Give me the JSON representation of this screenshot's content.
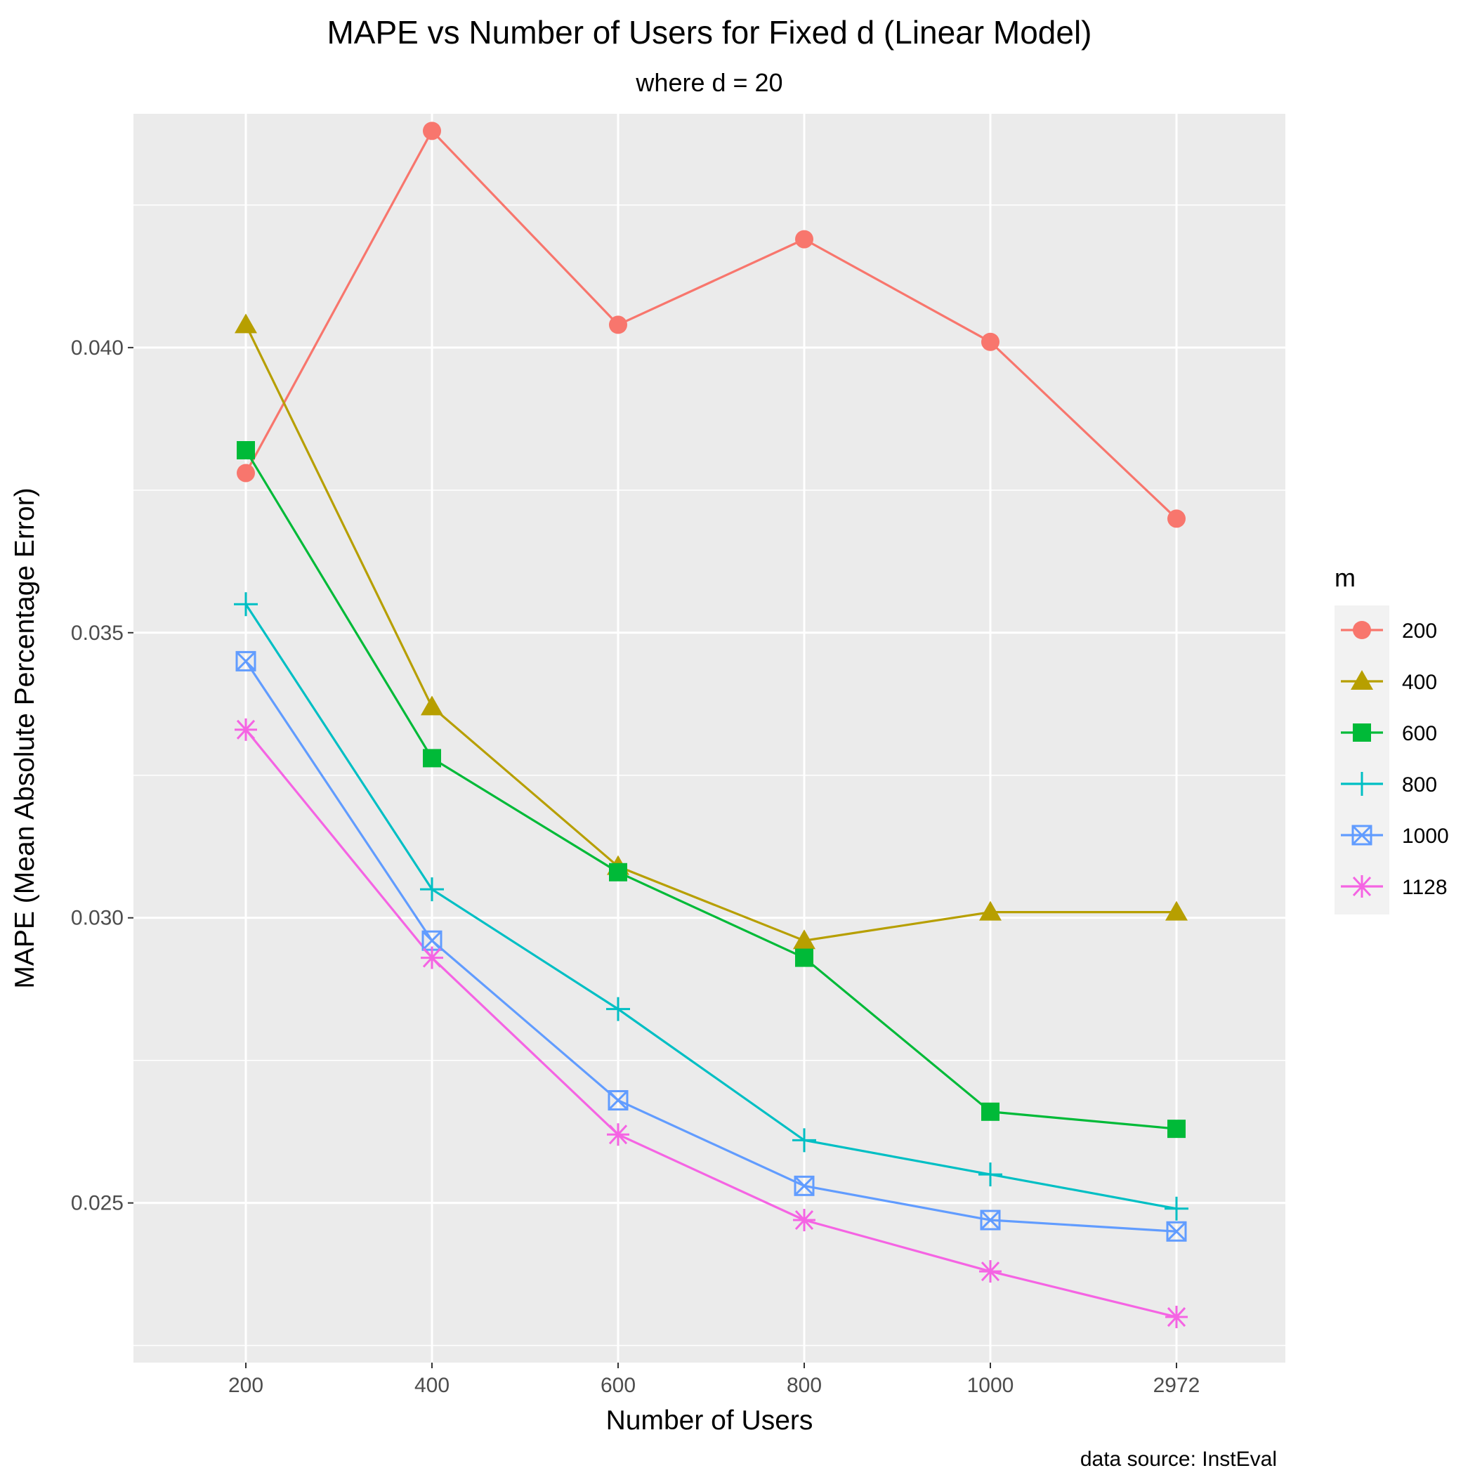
{
  "chart_data": {
    "type": "line",
    "title": "MAPE vs Number of Users for Fixed d (Linear Model)",
    "subtitle": "where d = 20",
    "xlabel": "Number of Users",
    "ylabel": "MAPE (Mean Absolute Percentage Error)",
    "caption": "data source: InstEval",
    "categories": [
      "200",
      "400",
      "600",
      "800",
      "1000",
      "2972"
    ],
    "ylim": [
      0.0222,
      0.0441
    ],
    "yticks": [
      0.025,
      0.03,
      0.035,
      0.04
    ],
    "ytick_labels": [
      "0.025",
      "0.030",
      "0.035",
      "0.040"
    ],
    "grid": true,
    "legend": {
      "title": "m",
      "position": "right"
    },
    "series": [
      {
        "name": "200",
        "color": "#F8766D",
        "shape": "circle",
        "values": [
          0.0378,
          0.0438,
          0.0404,
          0.0419,
          0.0401,
          0.037
        ]
      },
      {
        "name": "400",
        "color": "#B79F00",
        "shape": "triangle",
        "values": [
          0.0404,
          0.0337,
          0.0309,
          0.0296,
          0.0301,
          0.0301
        ]
      },
      {
        "name": "600",
        "color": "#00BA38",
        "shape": "square",
        "values": [
          0.0382,
          0.0328,
          0.0308,
          0.0293,
          0.0266,
          0.0263
        ]
      },
      {
        "name": "800",
        "color": "#00BFC4",
        "shape": "plus",
        "values": [
          0.0355,
          0.0305,
          0.0284,
          0.0261,
          0.0255,
          0.0249
        ]
      },
      {
        "name": "1000",
        "color": "#619CFF",
        "shape": "square-x",
        "values": [
          0.0345,
          0.0296,
          0.0268,
          0.0253,
          0.0247,
          0.0245
        ]
      },
      {
        "name": "1128",
        "color": "#F564E3",
        "shape": "asterisk",
        "values": [
          0.0333,
          0.0293,
          0.0262,
          0.0247,
          0.0238,
          0.023
        ]
      }
    ]
  }
}
